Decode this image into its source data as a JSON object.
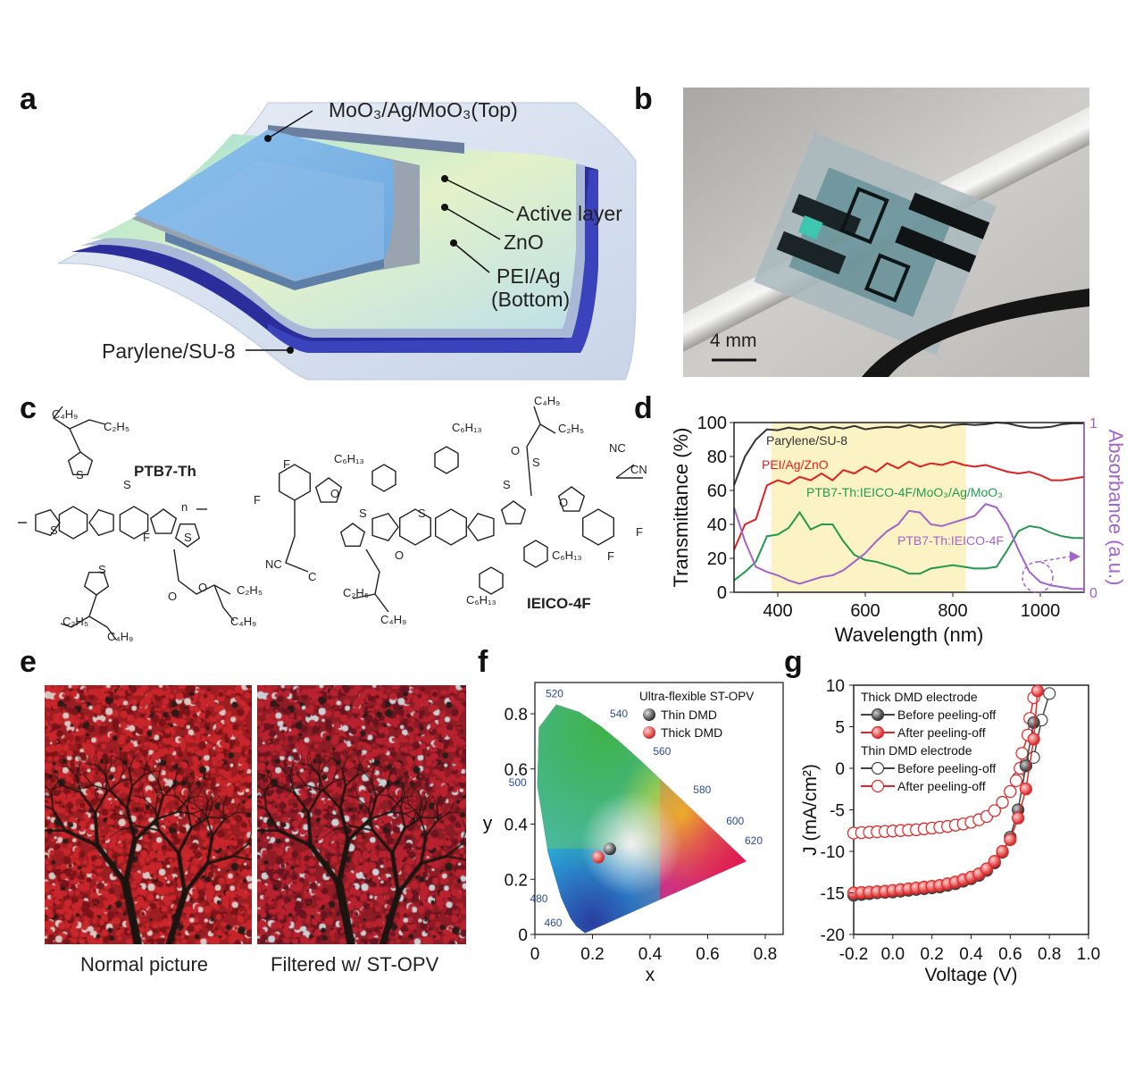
{
  "panels": {
    "a": {
      "label": "a",
      "layers": {
        "top": "MoO₃/Ag/MoO₃(Top)",
        "active": "Active layer",
        "zno": "ZnO",
        "pei": "PEI/Ag",
        "pei_sub": "(Bottom)",
        "substrate": "Parylene/SU-8"
      }
    },
    "b": {
      "label": "b",
      "scale_bar": "4 mm"
    },
    "c": {
      "label": "c",
      "ptb7_name": "PTB7-Th",
      "ieico_name": "IEICO-4F",
      "ptb7_atoms": [
        "C₄H₉",
        "C₂H₅",
        "S",
        "S",
        "S",
        "n",
        "S",
        "F",
        "S",
        "O",
        "O",
        "C₂H₅",
        "C₄H₉",
        "C₂H₅",
        "C₄H₉"
      ],
      "ieico_atoms": [
        "C₄H₉",
        "C₂H₅",
        "C₆H₁₃",
        "O",
        "C₆H₁₃",
        "NC",
        "CN",
        "F",
        "F",
        "O",
        "S",
        "S",
        "O",
        "F",
        "F",
        "S",
        "S",
        "NC",
        "C",
        "O",
        "C₆H₁₃",
        "C₂H₅",
        "C₄H₉",
        "C₆H₁₃"
      ]
    },
    "e": {
      "label": "e",
      "caption_left": "Normal picture",
      "caption_right": "Filtered w/ ST-OPV"
    },
    "f": {
      "label": "f"
    },
    "g": {
      "label": "g"
    }
  },
  "chart_data": [
    {
      "id": "d",
      "type": "line",
      "panel_label": "d",
      "xlabel": "Wavelength (nm)",
      "ylabel": "Transmittance (%)",
      "y2label": "Absorbance (a.u.)",
      "xlim": [
        300,
        1100
      ],
      "ylim": [
        0,
        100
      ],
      "y2lim": [
        0,
        1
      ],
      "xticks": [
        400,
        600,
        800,
        1000
      ],
      "yticks": [
        0,
        20,
        40,
        60,
        80,
        100
      ],
      "y2ticks": [
        0,
        1
      ],
      "highlight_band": [
        385,
        830
      ],
      "highlight_color": "#fbf3c4",
      "x": [
        300,
        325,
        350,
        375,
        400,
        425,
        450,
        475,
        500,
        525,
        550,
        575,
        600,
        625,
        650,
        675,
        700,
        725,
        750,
        775,
        800,
        825,
        850,
        875,
        900,
        925,
        950,
        975,
        1000,
        1025,
        1050,
        1075,
        1100
      ],
      "series": [
        {
          "name": "Parylene/SU-8",
          "axis": "left",
          "color": "#333333",
          "values": [
            63,
            80,
            90,
            96,
            95.5,
            97,
            96,
            97.5,
            96,
            97.5,
            96.5,
            98,
            96,
            97,
            97.5,
            97,
            98.5,
            97,
            98,
            97,
            98.5,
            99,
            98.5,
            99,
            100,
            99.5,
            98,
            97,
            97,
            97.5,
            99,
            99.5,
            99.5
          ]
        },
        {
          "name": "PEI/Ag/ZnO",
          "axis": "left",
          "color": "#e02020",
          "values": [
            25,
            40,
            43,
            63,
            66,
            64,
            68,
            66,
            70,
            66,
            72,
            70,
            74,
            71,
            76,
            73,
            77,
            74,
            76,
            75,
            77,
            75,
            74,
            75,
            73,
            71,
            70,
            71,
            69,
            66,
            66,
            67,
            68
          ]
        },
        {
          "name": "PTB7-Th:IEICO-4F/MoO₃/Ag/MoO₃",
          "axis": "left",
          "color": "#22994f",
          "values": [
            7,
            12,
            18,
            33,
            34,
            38,
            47,
            37,
            40,
            40,
            30,
            22,
            19,
            18,
            16,
            14,
            11,
            11,
            14,
            15,
            16,
            15,
            14,
            14,
            15,
            25,
            36,
            39,
            38,
            35,
            33,
            32,
            32
          ]
        },
        {
          "name": "PTB7-Th:IEICO-4F",
          "axis": "right",
          "color": "#a463c8",
          "values": [
            0.5,
            0.3,
            0.15,
            0.12,
            0.1,
            0.07,
            0.05,
            0.07,
            0.09,
            0.1,
            0.13,
            0.18,
            0.23,
            0.3,
            0.36,
            0.4,
            0.48,
            0.47,
            0.4,
            0.39,
            0.41,
            0.43,
            0.45,
            0.52,
            0.5,
            0.4,
            0.25,
            0.12,
            0.06,
            0.04,
            0.03,
            0.02,
            0.02
          ]
        }
      ]
    },
    {
      "id": "f",
      "type": "scatter",
      "xlabel": "x",
      "ylabel": "y",
      "xlim": [
        0,
        0.8
      ],
      "ylim": [
        0,
        0.85
      ],
      "xticks": [
        0.0,
        0.2,
        0.4,
        0.6,
        0.8
      ],
      "yticks": [
        0.0,
        0.2,
        0.4,
        0.6,
        0.8
      ],
      "legend_title": "Ultra-flexible ST-OPV",
      "legend_position": "top-right",
      "wavelength_labels": [
        "460",
        "480",
        "500",
        "520",
        "540",
        "560",
        "580",
        "600",
        "620"
      ],
      "series": [
        {
          "name": "Thin DMD",
          "color": "#3a3a3a",
          "x": 0.26,
          "y": 0.31
        },
        {
          "name": "Thick DMD",
          "color": "#e32626",
          "x": 0.22,
          "y": 0.28
        }
      ]
    },
    {
      "id": "g",
      "type": "line",
      "xlabel": "Voltage (V)",
      "ylabel": "J (mA/cm²)",
      "xlim": [
        -0.2,
        1.0
      ],
      "ylim": [
        -20,
        10
      ],
      "xticks": [
        -0.2,
        0.0,
        0.2,
        0.4,
        0.6,
        0.8,
        1.0
      ],
      "yticks": [
        -20,
        -15,
        -10,
        -5,
        0,
        5,
        10
      ],
      "legend_position": "top-left",
      "groups": [
        "Thick DMD electrode",
        "Thin DMD electrode"
      ],
      "series": [
        {
          "name": "Before peeling-off",
          "group": "Thick DMD electrode",
          "marker": "filled",
          "color": "#444444",
          "x": [
            -0.2,
            -0.16,
            -0.12,
            -0.08,
            -0.04,
            0,
            0.04,
            0.08,
            0.12,
            0.16,
            0.2,
            0.24,
            0.28,
            0.32,
            0.36,
            0.4,
            0.44,
            0.48,
            0.52,
            0.56,
            0.6,
            0.64,
            0.68,
            0.72
          ],
          "y": [
            -15.3,
            -15.2,
            -15.1,
            -15.0,
            -14.95,
            -14.9,
            -14.8,
            -14.7,
            -14.6,
            -14.5,
            -14.4,
            -14.3,
            -14.1,
            -13.9,
            -13.6,
            -13.3,
            -12.9,
            -12.3,
            -11.4,
            -10.1,
            -8.3,
            -5.0,
            0.3,
            5.5
          ]
        },
        {
          "name": "After peeling-off",
          "group": "Thick DMD electrode",
          "marker": "filled",
          "color": "#e32626",
          "x": [
            -0.2,
            -0.16,
            -0.12,
            -0.08,
            -0.04,
            0,
            0.04,
            0.08,
            0.12,
            0.16,
            0.2,
            0.24,
            0.28,
            0.32,
            0.36,
            0.4,
            0.44,
            0.48,
            0.52,
            0.56,
            0.6,
            0.64,
            0.68,
            0.72,
            0.74
          ],
          "y": [
            -15.0,
            -14.95,
            -14.9,
            -14.85,
            -14.8,
            -14.7,
            -14.6,
            -14.5,
            -14.4,
            -14.3,
            -14.2,
            -14.1,
            -13.9,
            -13.7,
            -13.4,
            -13.1,
            -12.7,
            -12.1,
            -11.2,
            -10.0,
            -8.6,
            -6.0,
            -2.5,
            3.5,
            9.3
          ]
        },
        {
          "name": "Before peeling-off",
          "group": "Thin DMD electrode",
          "marker": "open",
          "color": "#444444",
          "x": [
            -0.2,
            -0.16,
            -0.12,
            -0.08,
            -0.04,
            0,
            0.04,
            0.08,
            0.12,
            0.16,
            0.2,
            0.24,
            0.28,
            0.32,
            0.36,
            0.4,
            0.44,
            0.48,
            0.52,
            0.56,
            0.6,
            0.64,
            0.68,
            0.72,
            0.76,
            0.8
          ],
          "y": [
            -7.8,
            -7.75,
            -7.7,
            -7.65,
            -7.6,
            -7.55,
            -7.5,
            -7.45,
            -7.4,
            -7.3,
            -7.2,
            -7.1,
            -7.0,
            -6.85,
            -6.7,
            -6.5,
            -6.2,
            -5.8,
            -5.1,
            -4.1,
            -2.8,
            -1.2,
            0.3,
            1.3,
            5.8,
            9.0
          ]
        },
        {
          "name": "After peeling-off",
          "group": "Thin DMD electrode",
          "marker": "open",
          "color": "#e32626",
          "x": [
            -0.2,
            -0.16,
            -0.12,
            -0.08,
            -0.04,
            0,
            0.04,
            0.08,
            0.12,
            0.16,
            0.2,
            0.24,
            0.28,
            0.32,
            0.36,
            0.4,
            0.44,
            0.48,
            0.52,
            0.56,
            0.6,
            0.63,
            0.65,
            0.66,
            0.69,
            0.7,
            0.72
          ],
          "y": [
            -7.8,
            -7.75,
            -7.7,
            -7.65,
            -7.6,
            -7.55,
            -7.5,
            -7.45,
            -7.4,
            -7.3,
            -7.2,
            -7.1,
            -7.0,
            -6.85,
            -6.7,
            -6.5,
            -6.2,
            -5.8,
            -5.1,
            -4.1,
            -2.8,
            -1.5,
            0.0,
            1.8,
            4.0,
            6.0,
            8.5
          ]
        }
      ]
    }
  ]
}
